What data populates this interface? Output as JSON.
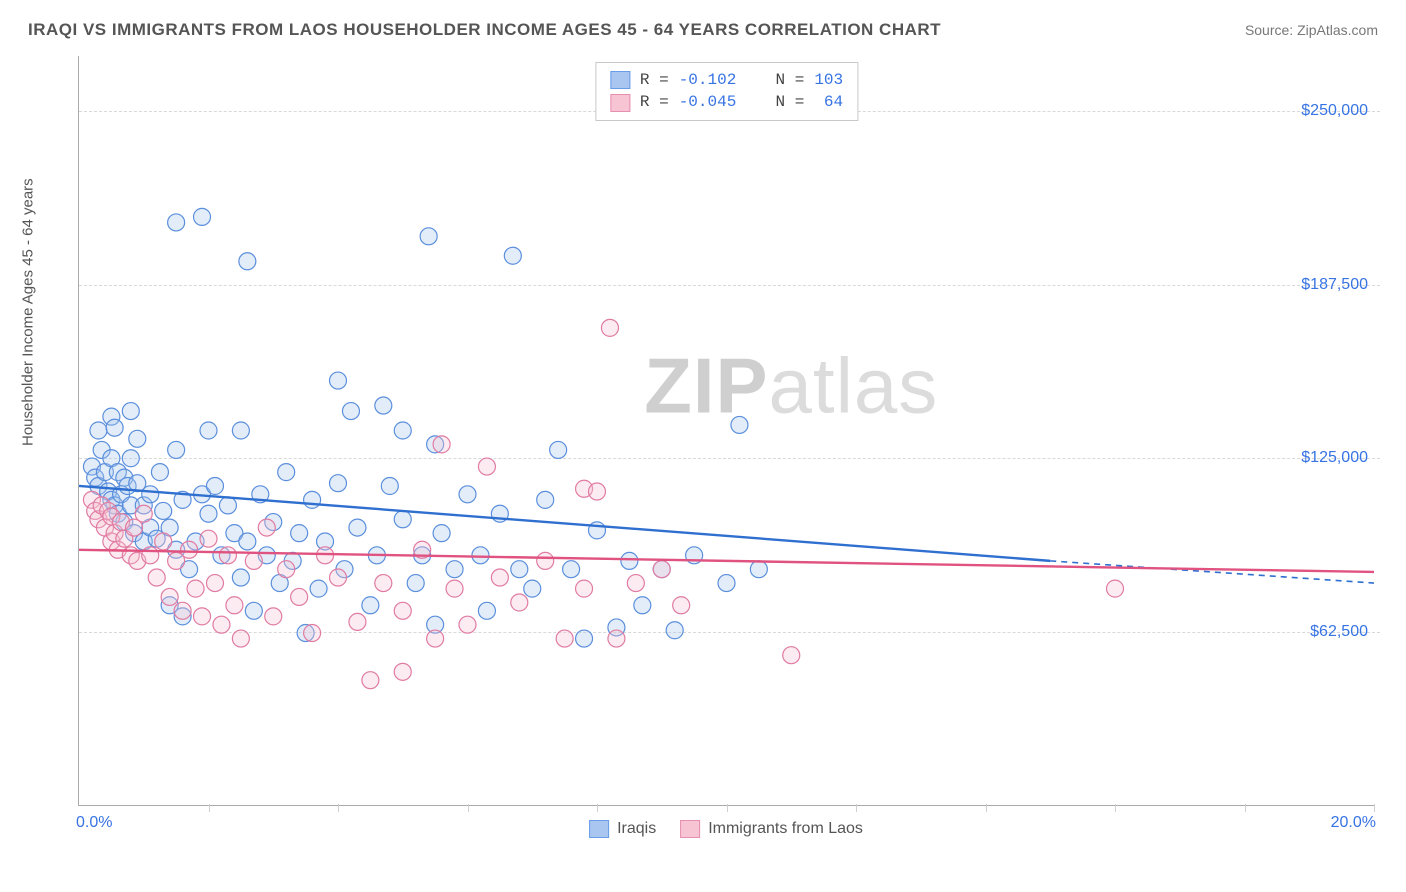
{
  "header": {
    "title": "IRAQI VS IMMIGRANTS FROM LAOS HOUSEHOLDER INCOME AGES 45 - 64 YEARS CORRELATION CHART",
    "source_label": "Source: ZipAtlas.com"
  },
  "chart": {
    "type": "scatter",
    "ylabel": "Householder Income Ages 45 - 64 years",
    "xlabel_min": "0.0%",
    "xlabel_max": "20.0%",
    "xlim": [
      0,
      20
    ],
    "ylim": [
      0,
      270000
    ],
    "ytick_values": [
      62500,
      125000,
      187500,
      250000
    ],
    "ytick_labels": [
      "$62,500",
      "$125,000",
      "$187,500",
      "$250,000"
    ],
    "xtick_positions": [
      2,
      4,
      6,
      8,
      10,
      12,
      14,
      16,
      18,
      20
    ],
    "grid_color": "#d9d9d9",
    "background_color": "#ffffff",
    "title_fontsize": 17,
    "label_fontsize": 15,
    "tick_fontsize": 16,
    "tick_color": "#3673e3",
    "marker_radius": 8.5,
    "marker_stroke_width": 1.2,
    "marker_fill_opacity": 0.32,
    "trend_line_width": 2.4,
    "watermark_text_bold": "ZIP",
    "watermark_text_rest": "atlas",
    "legend_top": {
      "rows": [
        {
          "swatch_fill": "#a8c6f0",
          "swatch_border": "#6a9de8",
          "r_label": "R =",
          "r_value": "-0.102",
          "n_label": "N =",
          "n_value": "103"
        },
        {
          "swatch_fill": "#f6c4d3",
          "swatch_border": "#e78fb0",
          "r_label": "R =",
          "r_value": "-0.045",
          "n_label": "N =",
          "n_value": " 64"
        }
      ]
    },
    "legend_bottom": [
      {
        "swatch_fill": "#a8c6f0",
        "swatch_border": "#6a9de8",
        "label": "Iraqis"
      },
      {
        "swatch_fill": "#f6c4d3",
        "swatch_border": "#e78fb0",
        "label": "Immigrants from Laos"
      }
    ],
    "series": [
      {
        "name": "Iraqis",
        "color_stroke": "#5b8fdc",
        "color_fill": "#a8c6f0",
        "trend_color": "#2f6fd0",
        "trend": {
          "x1": 0,
          "y1": 115000,
          "x2": 15,
          "y2": 88000,
          "dash_after_x": 15,
          "x3": 20,
          "y3": 80000
        },
        "points": [
          [
            1.5,
            210000
          ],
          [
            1.9,
            212000
          ],
          [
            2.6,
            196000
          ],
          [
            5.4,
            205000
          ],
          [
            6.7,
            198000
          ],
          [
            4.0,
            153000
          ],
          [
            4.2,
            142000
          ],
          [
            4.7,
            144000
          ],
          [
            5.0,
            135000
          ],
          [
            5.5,
            130000
          ],
          [
            0.2,
            122000
          ],
          [
            0.25,
            118000
          ],
          [
            0.3,
            115000
          ],
          [
            0.35,
            128000
          ],
          [
            0.4,
            120000
          ],
          [
            0.45,
            113000
          ],
          [
            0.5,
            125000
          ],
          [
            0.5,
            110000
          ],
          [
            0.55,
            108000
          ],
          [
            0.6,
            105000
          ],
          [
            0.6,
            120000
          ],
          [
            0.65,
            112000
          ],
          [
            0.7,
            118000
          ],
          [
            0.7,
            102000
          ],
          [
            0.75,
            115000
          ],
          [
            0.8,
            125000
          ],
          [
            0.8,
            108000
          ],
          [
            0.85,
            98000
          ],
          [
            0.9,
            116000
          ],
          [
            1.0,
            108000
          ],
          [
            1.0,
            95000
          ],
          [
            1.1,
            112000
          ],
          [
            1.1,
            100000
          ],
          [
            1.2,
            96000
          ],
          [
            1.25,
            120000
          ],
          [
            1.3,
            106000
          ],
          [
            1.4,
            100000
          ],
          [
            1.5,
            92000
          ],
          [
            1.5,
            128000
          ],
          [
            1.6,
            110000
          ],
          [
            1.7,
            85000
          ],
          [
            1.8,
            95000
          ],
          [
            1.9,
            112000
          ],
          [
            2.0,
            105000
          ],
          [
            2.0,
            135000
          ],
          [
            2.1,
            115000
          ],
          [
            2.2,
            90000
          ],
          [
            2.3,
            108000
          ],
          [
            2.4,
            98000
          ],
          [
            2.5,
            82000
          ],
          [
            2.5,
            135000
          ],
          [
            2.6,
            95000
          ],
          [
            2.7,
            70000
          ],
          [
            2.8,
            112000
          ],
          [
            2.9,
            90000
          ],
          [
            3.0,
            102000
          ],
          [
            3.1,
            80000
          ],
          [
            3.2,
            120000
          ],
          [
            3.3,
            88000
          ],
          [
            3.4,
            98000
          ],
          [
            3.5,
            62000
          ],
          [
            3.6,
            110000
          ],
          [
            3.7,
            78000
          ],
          [
            3.8,
            95000
          ],
          [
            4.0,
            116000
          ],
          [
            4.1,
            85000
          ],
          [
            4.3,
            100000
          ],
          [
            4.5,
            72000
          ],
          [
            4.6,
            90000
          ],
          [
            4.8,
            115000
          ],
          [
            5.0,
            103000
          ],
          [
            5.2,
            80000
          ],
          [
            5.3,
            90000
          ],
          [
            5.5,
            65000
          ],
          [
            5.6,
            98000
          ],
          [
            5.8,
            85000
          ],
          [
            6.0,
            112000
          ],
          [
            6.2,
            90000
          ],
          [
            6.3,
            70000
          ],
          [
            6.5,
            105000
          ],
          [
            6.8,
            85000
          ],
          [
            7.0,
            78000
          ],
          [
            7.2,
            110000
          ],
          [
            7.4,
            128000
          ],
          [
            7.6,
            85000
          ],
          [
            7.8,
            60000
          ],
          [
            8.0,
            99000
          ],
          [
            8.3,
            64000
          ],
          [
            8.5,
            88000
          ],
          [
            8.7,
            72000
          ],
          [
            9.0,
            85000
          ],
          [
            9.2,
            63000
          ],
          [
            9.5,
            90000
          ],
          [
            10.0,
            80000
          ],
          [
            10.2,
            137000
          ],
          [
            10.5,
            85000
          ],
          [
            0.3,
            135000
          ],
          [
            0.5,
            140000
          ],
          [
            0.55,
            136000
          ],
          [
            0.8,
            142000
          ],
          [
            0.9,
            132000
          ],
          [
            1.4,
            72000
          ],
          [
            1.6,
            68000
          ]
        ]
      },
      {
        "name": "Immigrants from Laos",
        "color_stroke": "#e07ba2",
        "color_fill": "#f6c4d3",
        "trend_color": "#e0527f",
        "trend": {
          "x1": 0,
          "y1": 92000,
          "x2": 20,
          "y2": 84000
        },
        "points": [
          [
            8.2,
            172000
          ],
          [
            5.6,
            130000
          ],
          [
            6.3,
            122000
          ],
          [
            7.8,
            114000
          ],
          [
            0.2,
            110000
          ],
          [
            0.25,
            106000
          ],
          [
            0.3,
            103000
          ],
          [
            0.35,
            108000
          ],
          [
            0.4,
            100000
          ],
          [
            0.45,
            106000
          ],
          [
            0.5,
            95000
          ],
          [
            0.5,
            104000
          ],
          [
            0.55,
            98000
          ],
          [
            0.6,
            92000
          ],
          [
            0.65,
            102000
          ],
          [
            0.7,
            96000
          ],
          [
            0.8,
            90000
          ],
          [
            0.85,
            100000
          ],
          [
            0.9,
            88000
          ],
          [
            1.0,
            105000
          ],
          [
            1.1,
            90000
          ],
          [
            1.2,
            82000
          ],
          [
            1.3,
            95000
          ],
          [
            1.4,
            75000
          ],
          [
            1.5,
            88000
          ],
          [
            1.6,
            70000
          ],
          [
            1.7,
            92000
          ],
          [
            1.8,
            78000
          ],
          [
            1.9,
            68000
          ],
          [
            2.0,
            96000
          ],
          [
            2.1,
            80000
          ],
          [
            2.2,
            65000
          ],
          [
            2.3,
            90000
          ],
          [
            2.4,
            72000
          ],
          [
            2.5,
            60000
          ],
          [
            2.7,
            88000
          ],
          [
            2.9,
            100000
          ],
          [
            3.0,
            68000
          ],
          [
            3.2,
            85000
          ],
          [
            3.4,
            75000
          ],
          [
            3.6,
            62000
          ],
          [
            3.8,
            90000
          ],
          [
            4.0,
            82000
          ],
          [
            4.3,
            66000
          ],
          [
            4.5,
            45000
          ],
          [
            4.7,
            80000
          ],
          [
            5.0,
            70000
          ],
          [
            5.3,
            92000
          ],
          [
            5.5,
            60000
          ],
          [
            5.8,
            78000
          ],
          [
            6.0,
            65000
          ],
          [
            6.5,
            82000
          ],
          [
            6.8,
            73000
          ],
          [
            7.2,
            88000
          ],
          [
            7.5,
            60000
          ],
          [
            7.8,
            78000
          ],
          [
            8.0,
            113000
          ],
          [
            8.3,
            60000
          ],
          [
            8.6,
            80000
          ],
          [
            9.0,
            85000
          ],
          [
            9.3,
            72000
          ],
          [
            11.0,
            54000
          ],
          [
            16.0,
            78000
          ],
          [
            5.0,
            48000
          ]
        ]
      }
    ]
  }
}
